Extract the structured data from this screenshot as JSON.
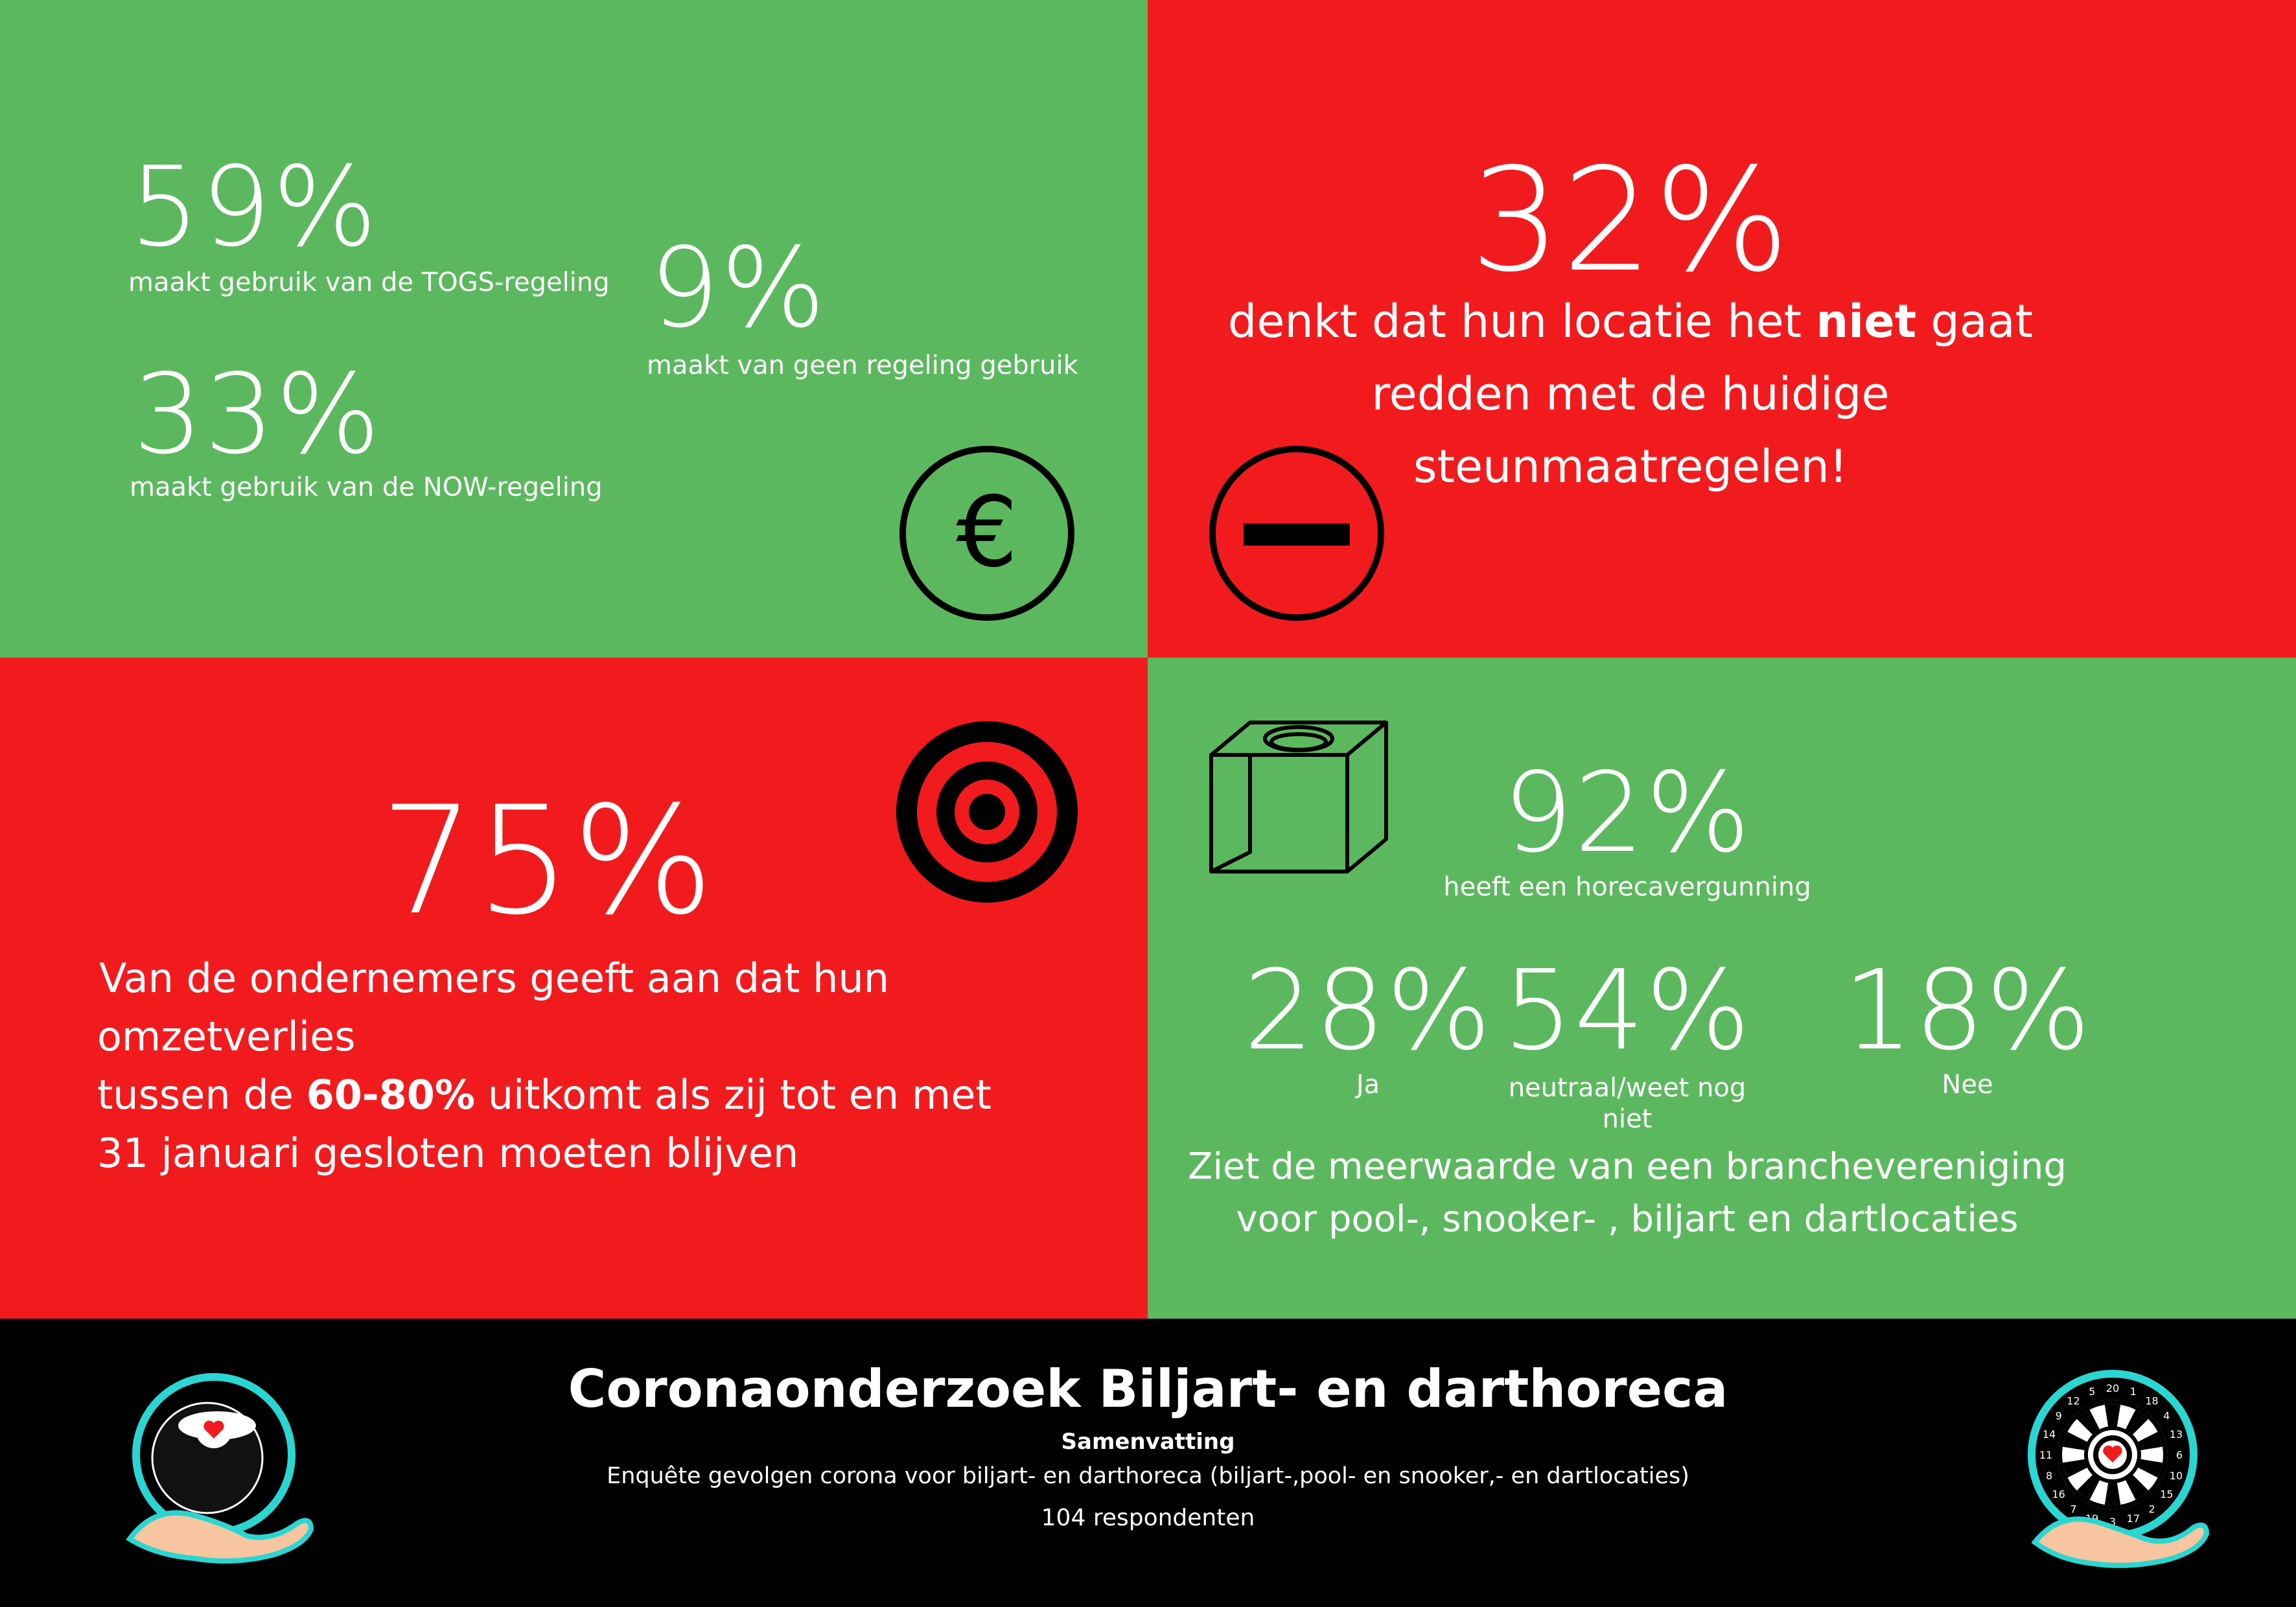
{
  "colors": {
    "green": "#5cb85f",
    "red": "#f11b1e",
    "black": "#000000",
    "white": "#ffffff",
    "cyan": "#2ad6d2"
  },
  "q1": {
    "stat1": {
      "value": "59%",
      "label": "maakt gebruik van de TOGS-regeling"
    },
    "stat2": {
      "value": "33%",
      "label": "maakt gebruik van de NOW-regeling"
    },
    "stat3": {
      "value": "9%",
      "label": "maakt van geen regeling gebruik"
    },
    "icon": "euro-icon"
  },
  "q2": {
    "value": "32%",
    "line1_pre": "denkt dat hun locatie het ",
    "line1_bold": "niet",
    "line1_post": " gaat",
    "line2": "redden met de huidige steunmaatregelen!",
    "icon": "minus-circle-icon"
  },
  "q3": {
    "value": "75%",
    "line1": "Van de ondernemers geeft aan dat hun omzetverlies",
    "line2_pre": "tussen de ",
    "line2_bold": "60-80%",
    "line2_post": " uitkomt als zij tot en met",
    "line3": "31 januari gesloten moeten blijven",
    "icon": "target-icon"
  },
  "q4": {
    "top": {
      "value": "92%",
      "label": "heeft een horecavergunning"
    },
    "stats": [
      {
        "value": "28%",
        "label": "Ja"
      },
      {
        "value": "54%",
        "label": "neutraal/weet nog niet"
      },
      {
        "value": "18%",
        "label": "Nee"
      }
    ],
    "line1": "Ziet de meerwaarde van een branchevereniging",
    "line2": "voor pool-, snooker- , biljart en dartlocaties",
    "icon": "chalk-cube-icon"
  },
  "footer": {
    "title": "Coronaonderzoek Biljart- en darthoreca",
    "subtitle": "Samenvatting",
    "desc": "Enquête gevolgen corona voor biljart- en darthoreca (biljart-,pool- en snooker,- en dartlocaties)",
    "respondents": "104 respondenten",
    "left_logo": "billiard-ball-hand-logo",
    "right_logo": "dartboard-hand-logo",
    "dart_numbers": [
      "20",
      "1",
      "18",
      "4",
      "13",
      "6",
      "10",
      "15",
      "2",
      "17",
      "3",
      "19",
      "7",
      "16",
      "8",
      "11",
      "14",
      "9",
      "12",
      "5"
    ]
  }
}
